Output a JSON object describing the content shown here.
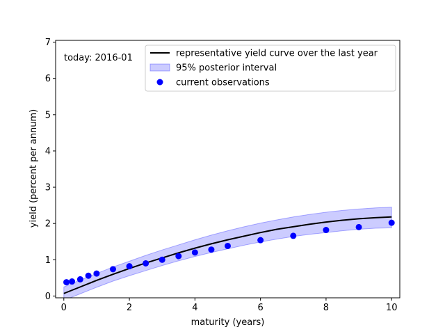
{
  "chart_data": {
    "type": "line",
    "xlabel": "maturity (years)",
    "ylabel": "yield (percent per annum)",
    "xlim": [
      -0.25,
      10.25
    ],
    "ylim": [
      -0.05,
      7.05
    ],
    "xticks": [
      0,
      2,
      4,
      6,
      8,
      10
    ],
    "yticks": [
      0,
      1,
      2,
      3,
      4,
      5,
      6,
      7
    ],
    "grid": false,
    "legend_position": "top-right",
    "annotation": "today: 2016-01",
    "series": [
      {
        "name": "representative yield curve over the last year",
        "kind": "line",
        "color": "#000000",
        "x": [
          0,
          0.5,
          1,
          1.5,
          2,
          2.5,
          3,
          3.5,
          4,
          4.5,
          5,
          5.5,
          6,
          6.5,
          7,
          7.5,
          8,
          8.5,
          9,
          9.5,
          10
        ],
        "y": [
          0.07,
          0.25,
          0.43,
          0.6,
          0.76,
          0.91,
          1.05,
          1.19,
          1.32,
          1.44,
          1.55,
          1.65,
          1.75,
          1.84,
          1.91,
          1.98,
          2.04,
          2.09,
          2.13,
          2.16,
          2.18
        ]
      },
      {
        "name": "95% posterior interval",
        "kind": "band",
        "color": "#0000ff",
        "x": [
          0,
          0.5,
          1,
          1.5,
          2,
          2.5,
          3,
          3.5,
          4,
          4.5,
          5,
          5.5,
          6,
          6.5,
          7,
          7.5,
          8,
          8.5,
          9,
          9.5,
          10
        ],
        "lower": [
          -0.12,
          0.06,
          0.24,
          0.41,
          0.56,
          0.7,
          0.84,
          0.97,
          1.09,
          1.2,
          1.3,
          1.4,
          1.49,
          1.57,
          1.64,
          1.7,
          1.75,
          1.8,
          1.84,
          1.87,
          1.88
        ],
        "upper": [
          0.25,
          0.44,
          0.62,
          0.8,
          0.96,
          1.12,
          1.27,
          1.41,
          1.55,
          1.68,
          1.8,
          1.91,
          2.01,
          2.1,
          2.18,
          2.25,
          2.31,
          2.36,
          2.4,
          2.43,
          2.45
        ]
      },
      {
        "name": "current observations",
        "kind": "scatter",
        "color": "#0000ff",
        "x": [
          0.08,
          0.25,
          0.5,
          0.75,
          1,
          1.5,
          2,
          2.5,
          3,
          3.5,
          4,
          4.5,
          5,
          6,
          7,
          8,
          9,
          10
        ],
        "y": [
          0.38,
          0.4,
          0.46,
          0.56,
          0.62,
          0.74,
          0.82,
          0.9,
          1.0,
          1.1,
          1.2,
          1.28,
          1.38,
          1.54,
          1.66,
          1.82,
          1.9,
          2.02
        ]
      }
    ]
  }
}
